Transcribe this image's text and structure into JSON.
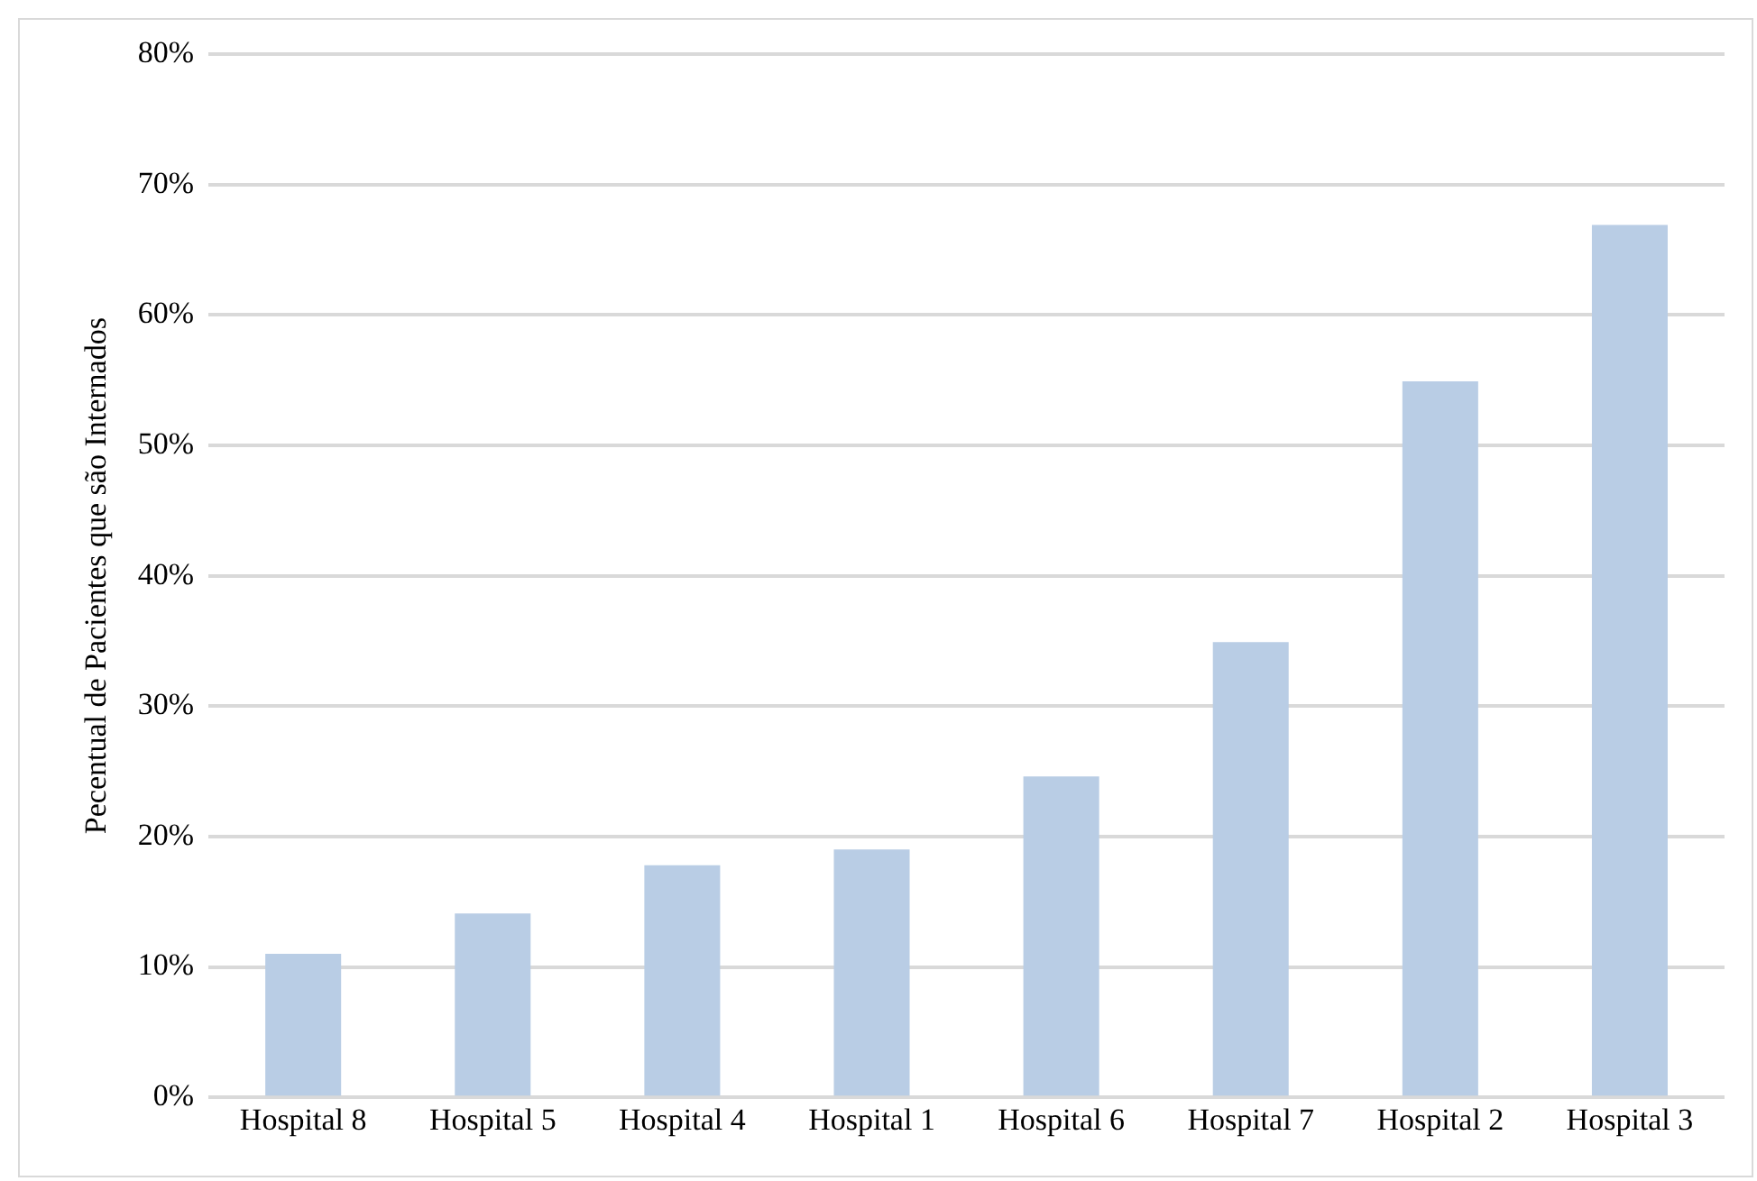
{
  "chart_data": {
    "type": "bar",
    "ylabel": "Pecentual de Pacientes que são Internados",
    "categories": [
      "Hospital 8",
      "Hospital 5",
      "Hospital 4",
      "Hospital 1",
      "Hospital 6",
      "Hospital 7",
      "Hospital 2",
      "Hospital 3"
    ],
    "values": [
      11,
      14.1,
      17.8,
      19,
      24.6,
      34.9,
      54.9,
      66.9
    ],
    "color": "#b9cde5",
    "ylim": [
      0,
      80
    ],
    "yticks": [
      {
        "value": 0,
        "label": "0%"
      },
      {
        "value": 10,
        "label": "10%"
      },
      {
        "value": 20,
        "label": "20%"
      },
      {
        "value": 30,
        "label": "30%"
      },
      {
        "value": 40,
        "label": "40%"
      },
      {
        "value": 50,
        "label": "50%"
      },
      {
        "value": 60,
        "label": "60%"
      },
      {
        "value": 70,
        "label": "70%"
      },
      {
        "value": 80,
        "label": "80%"
      }
    ],
    "grid": "y",
    "legend": false
  }
}
